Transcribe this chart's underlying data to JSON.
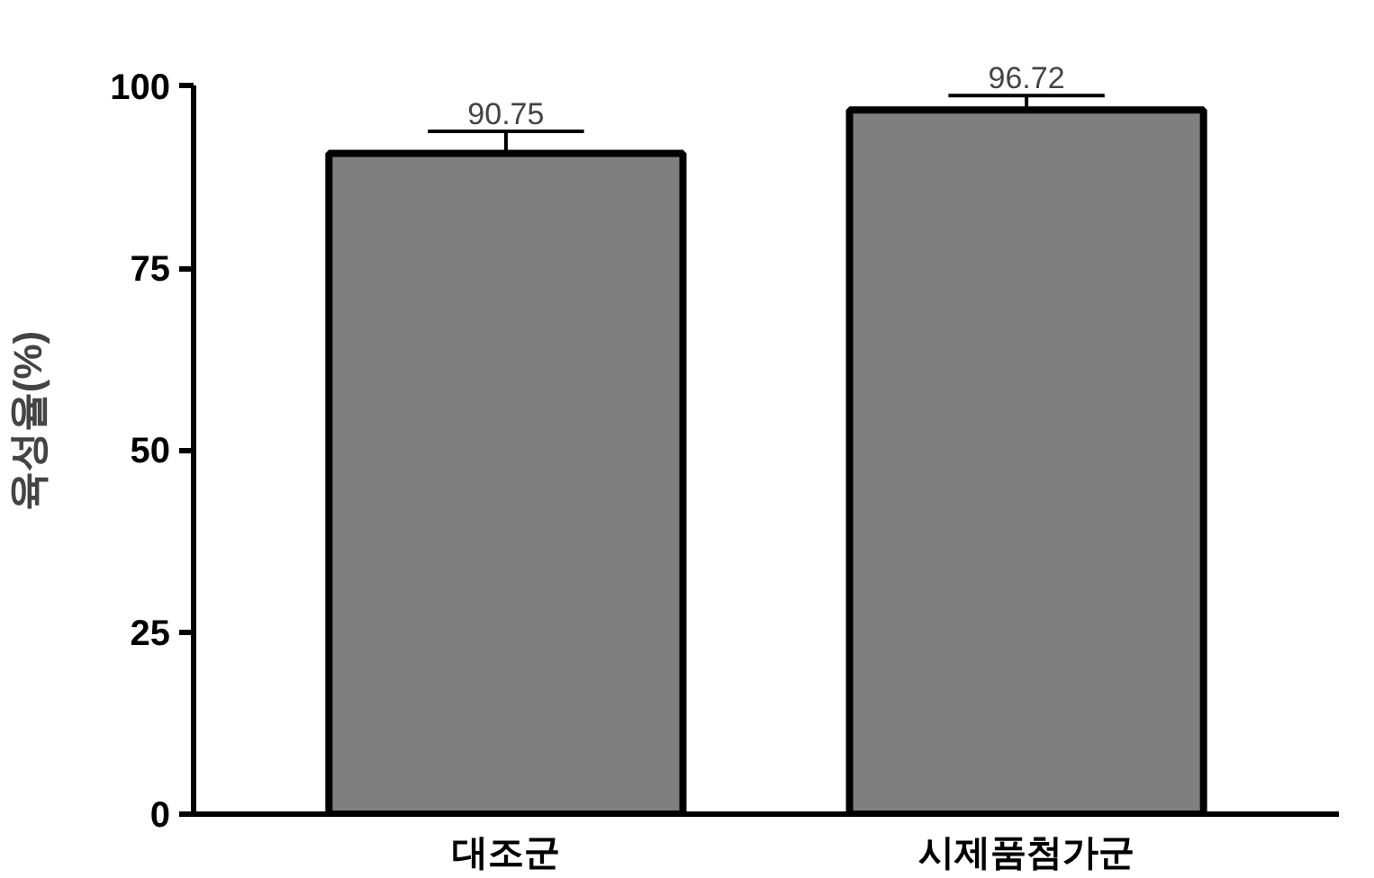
{
  "chart_data": {
    "type": "bar",
    "ylabel": "육성율(%)",
    "categories": [
      "대조군",
      "시제품첨가군"
    ],
    "values": [
      90.75,
      96.72
    ],
    "errors": [
      3.05,
      1.98
    ],
    "color": "#7f7f7f",
    "data_labels": true,
    "grid": false,
    "ylim": [
      0,
      100
    ],
    "yticks": [
      0,
      25,
      50,
      75,
      100
    ]
  }
}
